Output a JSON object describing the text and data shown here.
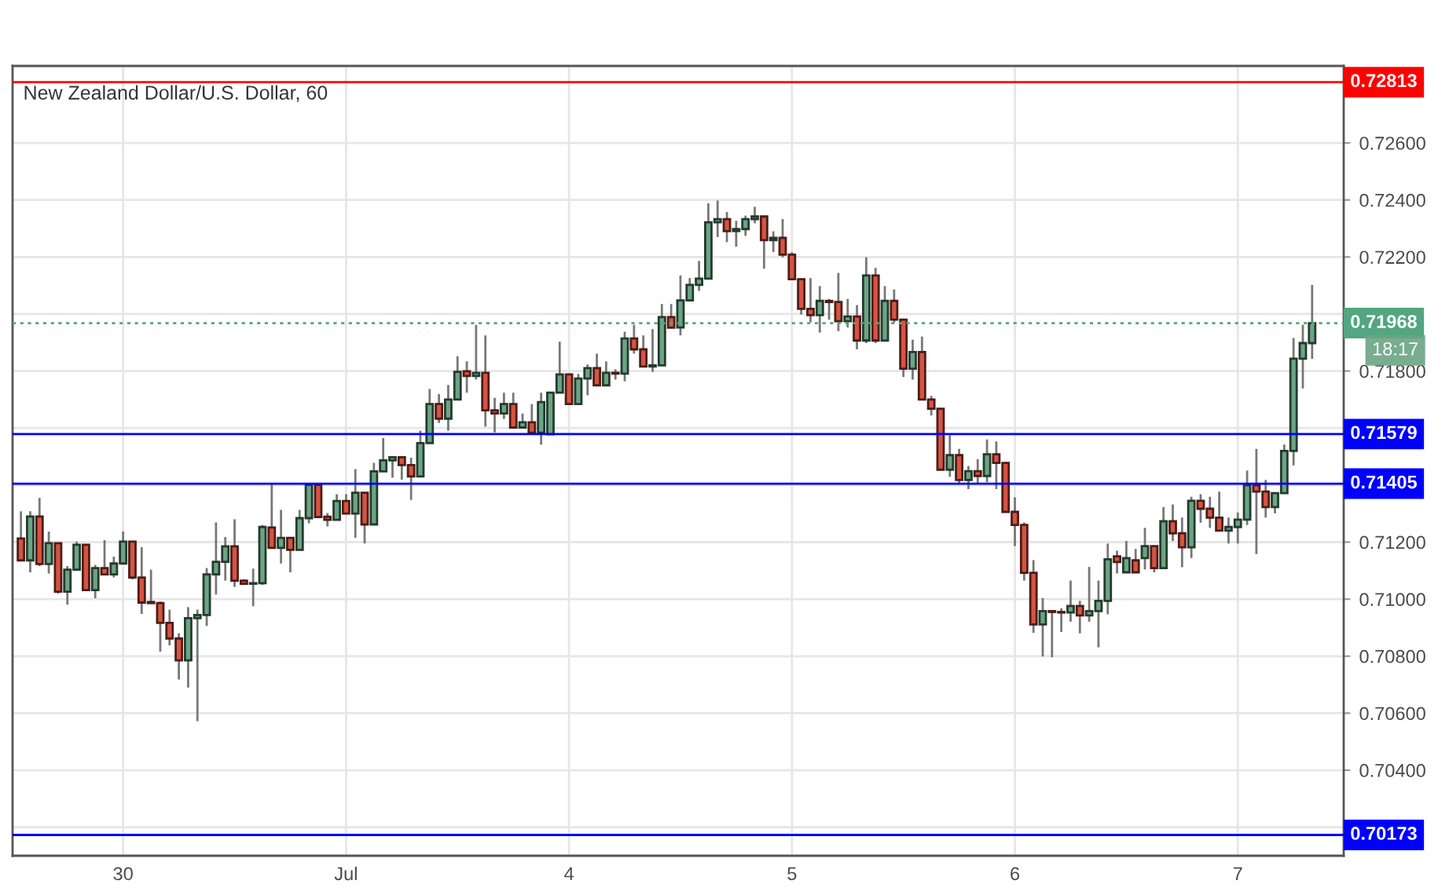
{
  "chart_data": {
    "type": "candlestick",
    "title": "New Zealand Dollar/U.S. Dollar, 60",
    "categories": [
      null,
      null,
      null,
      null,
      null,
      null,
      null,
      null,
      null,
      null,
      null,
      "30",
      null,
      null,
      null,
      null,
      null,
      null,
      null,
      null,
      null,
      null,
      null,
      null,
      null,
      null,
      null,
      null,
      null,
      null,
      null,
      null,
      null,
      null,
      null,
      "Jul",
      null,
      null,
      null,
      null,
      null,
      null,
      null,
      null,
      null,
      null,
      null,
      null,
      null,
      null,
      null,
      null,
      null,
      null,
      null,
      null,
      null,
      null,
      null,
      "4",
      null,
      null,
      null,
      null,
      null,
      null,
      null,
      null,
      null,
      null,
      null,
      null,
      null,
      null,
      null,
      null,
      null,
      null,
      null,
      null,
      null,
      null,
      null,
      "5",
      null,
      null,
      null,
      null,
      null,
      null,
      null,
      null,
      null,
      null,
      null,
      null,
      null,
      null,
      null,
      null,
      null,
      null,
      null,
      null,
      null,
      null,
      null,
      "6",
      null,
      null,
      null,
      null,
      null,
      null,
      null,
      null,
      null,
      null,
      null,
      null,
      null,
      null,
      null,
      null,
      null,
      null,
      null,
      null,
      null,
      null,
      null,
      "7",
      null,
      null,
      null,
      null,
      null,
      null,
      null,
      null
    ],
    "ohlc": [
      [
        0.71213,
        0.71308,
        0.71136,
        0.71136
      ],
      [
        0.71136,
        0.71308,
        0.71094,
        0.7129
      ],
      [
        0.7129,
        0.71355,
        0.71116,
        0.71123
      ],
      [
        0.71123,
        0.71237,
        0.7109,
        0.71196
      ],
      [
        0.71196,
        0.71196,
        0.71019,
        0.71026
      ],
      [
        0.71026,
        0.71116,
        0.70981,
        0.71103
      ],
      [
        0.71103,
        0.71202,
        0.71103,
        0.71191
      ],
      [
        0.71191,
        0.71191,
        0.71032,
        0.71032
      ],
      [
        0.71032,
        0.7112,
        0.71003,
        0.71109
      ],
      [
        0.71109,
        0.71207,
        0.71083,
        0.71087
      ],
      [
        0.71087,
        0.71149,
        0.71076,
        0.71125
      ],
      [
        0.71125,
        0.71237,
        0.71125,
        0.71202
      ],
      [
        0.71202,
        0.71202,
        0.71069,
        0.71076
      ],
      [
        0.71076,
        0.71182,
        0.70948,
        0.70988
      ],
      [
        0.7099,
        0.71103,
        0.70986,
        0.70986
      ],
      [
        0.70986,
        0.70992,
        0.70816,
        0.70917
      ],
      [
        0.70917,
        0.70963,
        0.70838,
        0.70862
      ],
      [
        0.70862,
        0.7088,
        0.70718,
        0.70785
      ],
      [
        0.70785,
        0.70972,
        0.7069,
        0.70933
      ],
      [
        0.70933,
        0.70963,
        0.70572,
        0.70944
      ],
      [
        0.70944,
        0.71109,
        0.70906,
        0.71087
      ],
      [
        0.71087,
        0.71269,
        0.71016,
        0.71131
      ],
      [
        0.71131,
        0.71218,
        0.71065,
        0.71185
      ],
      [
        0.71185,
        0.7128,
        0.71043,
        0.71065
      ],
      [
        0.71065,
        0.7107,
        0.7105,
        0.71054
      ],
      [
        0.71054,
        0.71107,
        0.70975,
        0.71056
      ],
      [
        0.71056,
        0.7126,
        0.7105,
        0.71253
      ],
      [
        0.71251,
        0.71405,
        0.7118,
        0.7118
      ],
      [
        0.7118,
        0.71313,
        0.71125,
        0.71215
      ],
      [
        0.71215,
        0.71215,
        0.71094,
        0.71173
      ],
      [
        0.71173,
        0.71313,
        0.71173,
        0.71284
      ],
      [
        0.71284,
        0.71401,
        0.71266,
        0.71401
      ],
      [
        0.71401,
        0.71401,
        0.71288,
        0.71288
      ],
      [
        0.71289,
        0.71302,
        0.71255,
        0.71278
      ],
      [
        0.71278,
        0.71368,
        0.71278,
        0.71344
      ],
      [
        0.71344,
        0.71368,
        0.713,
        0.713
      ],
      [
        0.713,
        0.71456,
        0.71215,
        0.71373
      ],
      [
        0.71373,
        0.71373,
        0.71195,
        0.71262
      ],
      [
        0.71262,
        0.71478,
        0.71262,
        0.71448
      ],
      [
        0.71448,
        0.71565,
        0.71448,
        0.71487
      ],
      [
        0.71487,
        0.71498,
        0.71426,
        0.71498
      ],
      [
        0.71498,
        0.71498,
        0.71419,
        0.7147
      ],
      [
        0.7147,
        0.71496,
        0.71348,
        0.7143
      ],
      [
        0.7143,
        0.71591,
        0.7143,
        0.71547
      ],
      [
        0.71547,
        0.71737,
        0.71547,
        0.71684
      ],
      [
        0.71684,
        0.71719,
        0.71618,
        0.71633
      ],
      [
        0.71633,
        0.71751,
        0.71591,
        0.717
      ],
      [
        0.717,
        0.71852,
        0.717,
        0.71797
      ],
      [
        0.71799,
        0.71834,
        0.71724,
        0.71783
      ],
      [
        0.71783,
        0.71962,
        0.7177,
        0.71794
      ],
      [
        0.71794,
        0.71925,
        0.71605,
        0.71662
      ],
      [
        0.71662,
        0.71706,
        0.71585,
        0.71651
      ],
      [
        0.71651,
        0.71724,
        0.71632,
        0.71684
      ],
      [
        0.71684,
        0.71724,
        0.71602,
        0.71602
      ],
      [
        0.71602,
        0.71651,
        0.71602,
        0.7162
      ],
      [
        0.7162,
        0.71684,
        0.71584,
        0.71584
      ],
      [
        0.71584,
        0.71724,
        0.71542,
        0.71691
      ],
      [
        0.71578,
        0.71724,
        0.71578,
        0.71724
      ],
      [
        0.71724,
        0.71903,
        0.71724,
        0.71788
      ],
      [
        0.71788,
        0.71788,
        0.71684,
        0.71684
      ],
      [
        0.71684,
        0.7179,
        0.71684,
        0.71774
      ],
      [
        0.71774,
        0.71823,
        0.71715,
        0.7181
      ],
      [
        0.7181,
        0.71861,
        0.7175,
        0.7175
      ],
      [
        0.7175,
        0.71834,
        0.7175,
        0.71794
      ],
      [
        0.71794,
        0.71806,
        0.7177,
        0.71791
      ],
      [
        0.71791,
        0.71938,
        0.71764,
        0.71914
      ],
      [
        0.71914,
        0.71962,
        0.71861,
        0.71876
      ],
      [
        0.71876,
        0.71925,
        0.71816,
        0.71816
      ],
      [
        0.71816,
        0.71947,
        0.71797,
        0.7182
      ],
      [
        0.7182,
        0.72035,
        0.7182,
        0.71989
      ],
      [
        0.71989,
        0.72035,
        0.71952,
        0.71952
      ],
      [
        0.71953,
        0.72135,
        0.71925,
        0.72048
      ],
      [
        0.72048,
        0.72126,
        0.72044,
        0.72102
      ],
      [
        0.72102,
        0.72186,
        0.72081,
        0.72124
      ],
      [
        0.72124,
        0.72388,
        0.72124,
        0.72322
      ],
      [
        0.72322,
        0.72398,
        0.7227,
        0.72333
      ],
      [
        0.72333,
        0.72358,
        0.72252,
        0.72291
      ],
      [
        0.72291,
        0.72327,
        0.72236,
        0.72298
      ],
      [
        0.72298,
        0.72345,
        0.72274,
        0.72333
      ],
      [
        0.72333,
        0.72376,
        0.72318,
        0.72342
      ],
      [
        0.72342,
        0.72342,
        0.72159,
        0.72259
      ],
      [
        0.72259,
        0.7229,
        0.72217,
        0.72267
      ],
      [
        0.72267,
        0.72333,
        0.72199,
        0.72208
      ],
      [
        0.72208,
        0.72217,
        0.72122,
        0.72122
      ],
      [
        0.72122,
        0.72122,
        0.71998,
        0.72018
      ],
      [
        0.72018,
        0.72126,
        0.71971,
        0.71996
      ],
      [
        0.71996,
        0.72098,
        0.71935,
        0.72046
      ],
      [
        0.72046,
        0.72053,
        0.7198,
        0.72042
      ],
      [
        0.72042,
        0.72144,
        0.7194,
        0.71975
      ],
      [
        0.71975,
        0.72053,
        0.71953,
        0.71991
      ],
      [
        0.71991,
        0.72031,
        0.71876,
        0.71907
      ],
      [
        0.71907,
        0.72199,
        0.71898,
        0.72135
      ],
      [
        0.72135,
        0.72162,
        0.71898,
        0.71907
      ],
      [
        0.71907,
        0.72098,
        0.71907,
        0.72046
      ],
      [
        0.72046,
        0.72086,
        0.7197,
        0.7198
      ],
      [
        0.7198,
        0.71984,
        0.71779,
        0.71808
      ],
      [
        0.71808,
        0.7191,
        0.7177,
        0.71867
      ],
      [
        0.71867,
        0.71921,
        0.717,
        0.717
      ],
      [
        0.717,
        0.71713,
        0.71644,
        0.71668
      ],
      [
        0.71668,
        0.71668,
        0.71454,
        0.71454
      ],
      [
        0.71454,
        0.71575,
        0.71429,
        0.71505
      ],
      [
        0.71505,
        0.71527,
        0.71405,
        0.71418
      ],
      [
        0.71418,
        0.71467,
        0.71386,
        0.71449
      ],
      [
        0.71449,
        0.71491,
        0.71405,
        0.71432
      ],
      [
        0.71432,
        0.7156,
        0.7141,
        0.71508
      ],
      [
        0.71508,
        0.71553,
        0.71386,
        0.71478
      ],
      [
        0.71478,
        0.71478,
        0.71306,
        0.71306
      ],
      [
        0.71306,
        0.71357,
        0.71186,
        0.7126
      ],
      [
        0.7126,
        0.71269,
        0.71065,
        0.71092
      ],
      [
        0.71092,
        0.71137,
        0.70882,
        0.70911
      ],
      [
        0.70911,
        0.71004,
        0.70799,
        0.70958
      ],
      [
        0.70958,
        0.70958,
        0.70796,
        0.70955
      ],
      [
        0.70955,
        0.70968,
        0.70885,
        0.70953
      ],
      [
        0.70953,
        0.71065,
        0.70921,
        0.70976
      ],
      [
        0.70976,
        0.70994,
        0.7088,
        0.70943
      ],
      [
        0.70943,
        0.71113,
        0.70921,
        0.70958
      ],
      [
        0.70958,
        0.71065,
        0.70831,
        0.70994
      ],
      [
        0.70994,
        0.71195,
        0.70947,
        0.7114
      ],
      [
        0.7115,
        0.7117,
        0.7109,
        0.7113
      ],
      [
        0.71094,
        0.71204,
        0.71094,
        0.71144
      ],
      [
        0.71136,
        0.71176,
        0.71094,
        0.71094
      ],
      [
        0.71144,
        0.7125,
        0.71104,
        0.71186
      ],
      [
        0.71186,
        0.71186,
        0.71094,
        0.71109
      ],
      [
        0.71109,
        0.71323,
        0.71109,
        0.71273
      ],
      [
        0.71273,
        0.71332,
        0.71204,
        0.71231
      ],
      [
        0.71231,
        0.71286,
        0.71112,
        0.71182
      ],
      [
        0.71182,
        0.71359,
        0.71144,
        0.71345
      ],
      [
        0.71345,
        0.71368,
        0.71268,
        0.71317
      ],
      [
        0.71317,
        0.71359,
        0.7125,
        0.71286
      ],
      [
        0.71286,
        0.71377,
        0.7124,
        0.7124
      ],
      [
        0.7124,
        0.71286,
        0.71195,
        0.71253
      ],
      [
        0.71253,
        0.71304,
        0.71195,
        0.71279
      ],
      [
        0.71279,
        0.71451,
        0.7126,
        0.71399
      ],
      [
        0.71399,
        0.71527,
        0.71158,
        0.71377
      ],
      [
        0.71377,
        0.71418,
        0.71286,
        0.71323
      ],
      [
        0.71323,
        0.71372,
        0.71301,
        0.71372
      ],
      [
        0.71372,
        0.71542,
        0.71372,
        0.7152
      ],
      [
        0.7152,
        0.71916,
        0.71469,
        0.71843
      ],
      [
        0.71843,
        0.71962,
        0.71739,
        0.71898
      ],
      [
        0.71898,
        0.72102,
        0.71843,
        0.71968
      ]
    ],
    "colors": [
      "#d75442",
      "#6ba583",
      "#d75442",
      "#6ba583",
      "#d75442",
      "#6ba583",
      "#6ba583",
      "#d75442",
      "#6ba583",
      "#d75442",
      "#6ba583",
      "#6ba583",
      "#d75442",
      "#d75442",
      "#d75442",
      "#d75442",
      "#d75442",
      "#d75442",
      "#6ba583",
      "#6ba583",
      "#6ba583",
      "#6ba583",
      "#6ba583",
      "#d75442",
      "#d75442",
      "#6ba583",
      "#6ba583",
      "#d75442",
      "#6ba583",
      "#d75442",
      "#6ba583",
      "#6ba583",
      "#d75442",
      "#d75442",
      "#6ba583",
      "#d75442",
      "#6ba583",
      "#d75442",
      "#6ba583",
      "#6ba583",
      "#6ba583",
      "#d75442",
      "#d75442",
      "#6ba583",
      "#6ba583",
      "#d75442",
      "#6ba583",
      "#6ba583",
      "#d75442",
      "#6ba583",
      "#d75442",
      "#d75442",
      "#6ba583",
      "#d75442",
      "#6ba583",
      "#d75442",
      "#6ba583",
      "#6ba583",
      "#6ba583",
      "#d75442",
      "#6ba583",
      "#6ba583",
      "#d75442",
      "#6ba583",
      "#d75442",
      "#6ba583",
      "#d75442",
      "#d75442",
      "#6ba583",
      "#6ba583",
      "#d75442",
      "#6ba583",
      "#6ba583",
      "#6ba583",
      "#6ba583",
      "#6ba583",
      "#d75442",
      "#6ba583",
      "#6ba583",
      "#6ba583",
      "#d75442",
      "#6ba583",
      "#d75442",
      "#d75442",
      "#d75442",
      "#d75442",
      "#6ba583",
      "#d75442",
      "#d75442",
      "#6ba583",
      "#d75442",
      "#6ba583",
      "#d75442",
      "#6ba583",
      "#d75442",
      "#d75442",
      "#6ba583",
      "#d75442",
      "#d75442",
      "#d75442",
      "#6ba583",
      "#d75442",
      "#6ba583",
      "#d75442",
      "#6ba583",
      "#d75442",
      "#d75442",
      "#d75442",
      "#d75442",
      "#d75442",
      "#6ba583",
      "#d75442",
      "#d75442",
      "#6ba583",
      "#d75442",
      "#6ba583",
      "#6ba583",
      "#6ba583",
      "#d75442",
      "#6ba583",
      "#d75442",
      "#6ba583",
      "#d75442",
      "#6ba583",
      "#d75442",
      "#d75442",
      "#6ba583",
      "#d75442",
      "#d75442",
      "#d75442",
      "#6ba583",
      "#6ba583",
      "#6ba583",
      "#d75442",
      "#d75442",
      "#6ba583",
      "#6ba583",
      "#6ba583",
      "#6ba583",
      "#6ba583"
    ],
    "ylim": [
      0.701,
      0.7287
    ],
    "yticks": [
      {
        "value": 0.702,
        "label": null
      },
      {
        "value": 0.704,
        "label": "0.70400"
      },
      {
        "value": 0.706,
        "label": "0.70600"
      },
      {
        "value": 0.708,
        "label": "0.70800"
      },
      {
        "value": 0.71,
        "label": "0.71000"
      },
      {
        "value": 0.712,
        "label": "0.71200"
      },
      {
        "value": 0.714,
        "label": null
      },
      {
        "value": 0.716,
        "label": null
      },
      {
        "value": 0.718,
        "label": "0.71800"
      },
      {
        "value": 0.72,
        "label": null
      },
      {
        "value": 0.722,
        "label": "0.72200"
      },
      {
        "value": 0.724,
        "label": "0.72400"
      },
      {
        "value": 0.726,
        "label": "0.72600"
      }
    ],
    "grid": true,
    "ref_lines": [
      {
        "axis": "y",
        "value": 0.72813,
        "label": "0.72813",
        "color": "#ff0000"
      },
      {
        "axis": "y",
        "value": 0.71968,
        "label": "0.71968",
        "color": "#53a680",
        "line_style": "dotted"
      },
      {
        "axis": "y",
        "value": 0.71579,
        "label": "0.71579",
        "color": "#0000ff"
      },
      {
        "axis": "y",
        "value": 0.71405,
        "label": "0.71405",
        "color": "#0000ff"
      },
      {
        "axis": "y",
        "value": 0.70173,
        "label": "0.70173",
        "color": "#0000ff"
      }
    ],
    "annotations": [
      "18:17"
    ]
  }
}
